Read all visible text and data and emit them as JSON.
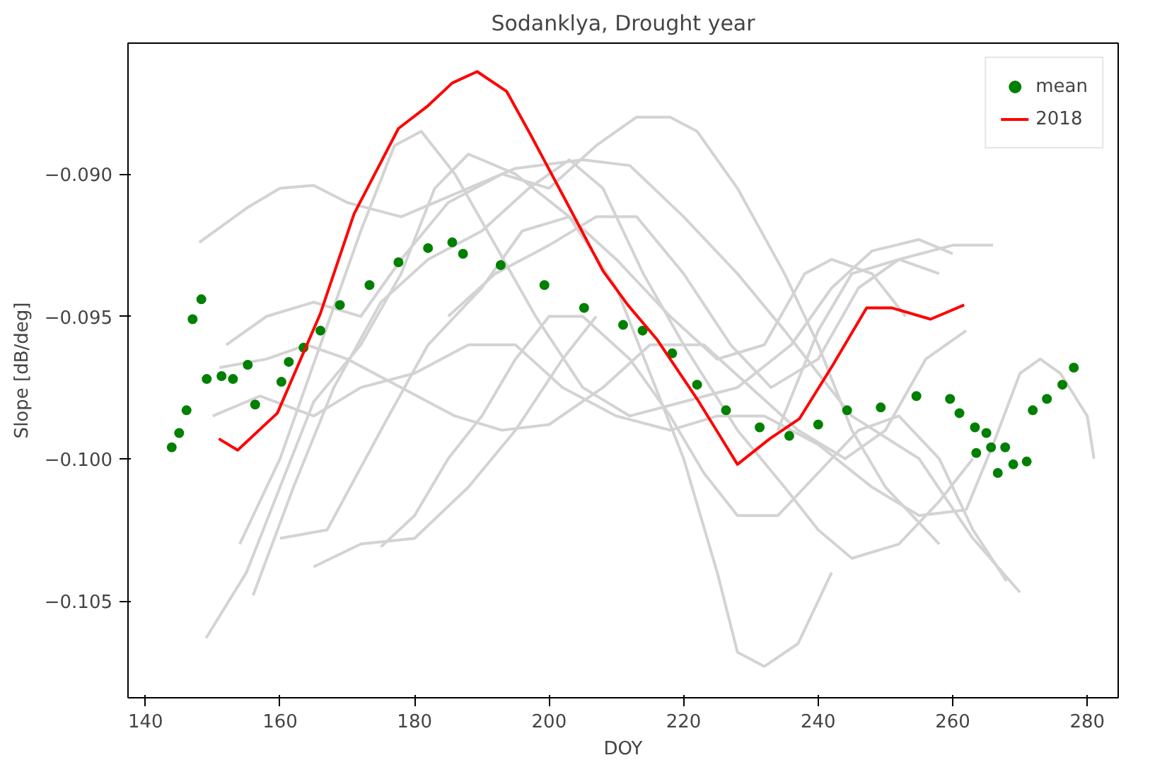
{
  "chart_data": {
    "type": "line",
    "title": "Sodanklya, Drought year",
    "xlabel": "DOY",
    "ylabel": "Slope [dB/deg]",
    "xlim": [
      137.4,
      284.6
    ],
    "ylim": [
      -0.1084,
      -0.0854
    ],
    "xticks": [
      140,
      160,
      180,
      200,
      220,
      240,
      260,
      280
    ],
    "yticks": [
      {
        "value": -0.105,
        "label": "−0.105"
      },
      {
        "value": -0.1,
        "label": "−0.100"
      },
      {
        "value": -0.095,
        "label": "−0.095"
      },
      {
        "value": -0.09,
        "label": "−0.090"
      }
    ],
    "grid": false,
    "legend": "top right",
    "line_style": "solid",
    "series": [
      {
        "color": "#d3d3d3",
        "x": [
          148,
          155,
          160,
          165,
          170,
          178,
          185,
          195,
          205,
          212,
          220,
          228,
          235,
          245,
          255,
          263,
          270
        ],
        "values": [
          -0.0924,
          -0.0912,
          -0.0905,
          -0.0904,
          -0.091,
          -0.0915,
          -0.0908,
          -0.0898,
          -0.0895,
          -0.0897,
          -0.0915,
          -0.0935,
          -0.0955,
          -0.0985,
          -0.1,
          -0.1028,
          -0.1047
        ]
      },
      {
        "color": "#d3d3d3",
        "x": [
          149,
          155,
          160,
          165,
          172,
          178,
          183,
          188,
          195,
          203,
          210,
          215,
          220,
          225,
          228,
          232,
          237,
          242
        ],
        "values": [
          -0.1063,
          -0.104,
          -0.101,
          -0.098,
          -0.096,
          -0.0935,
          -0.0905,
          -0.0893,
          -0.09,
          -0.0915,
          -0.094,
          -0.097,
          -0.1,
          -0.104,
          -0.1068,
          -0.1073,
          -0.1065,
          -0.104
        ]
      },
      {
        "color": "#d3d3d3",
        "x": [
          152,
          158,
          165,
          172,
          178,
          185,
          193,
          200,
          207,
          213,
          218,
          222,
          228,
          235,
          240,
          245,
          250,
          258
        ],
        "values": [
          -0.096,
          -0.095,
          -0.0945,
          -0.095,
          -0.093,
          -0.091,
          -0.09,
          -0.0905,
          -0.089,
          -0.088,
          -0.088,
          -0.0885,
          -0.0905,
          -0.0935,
          -0.096,
          -0.099,
          -0.101,
          -0.103
        ]
      },
      {
        "color": "#d3d3d3",
        "x": [
          154,
          160,
          166,
          172,
          177,
          181,
          186,
          192,
          198,
          205,
          212,
          220,
          228,
          236,
          242,
          248,
          255,
          260
        ],
        "values": [
          -0.103,
          -0.1,
          -0.096,
          -0.092,
          -0.089,
          -0.0885,
          -0.09,
          -0.0925,
          -0.095,
          -0.0975,
          -0.0985,
          -0.098,
          -0.0975,
          -0.096,
          -0.094,
          -0.0927,
          -0.0923,
          -0.0928
        ]
      },
      {
        "color": "#d3d3d3",
        "x": [
          156,
          162,
          168,
          175,
          182,
          190,
          197,
          203,
          208,
          214,
          220,
          228,
          235,
          240,
          245,
          252,
          258,
          263
        ],
        "values": [
          -0.1048,
          -0.101,
          -0.0975,
          -0.0945,
          -0.093,
          -0.092,
          -0.0905,
          -0.0895,
          -0.0905,
          -0.0935,
          -0.096,
          -0.099,
          -0.101,
          -0.1025,
          -0.1035,
          -0.103,
          -0.1015,
          -0.1
        ]
      },
      {
        "color": "#d3d3d3",
        "x": [
          160,
          167,
          175,
          182,
          190,
          196,
          203,
          210,
          218,
          225,
          232,
          238,
          242,
          248,
          253
        ],
        "values": [
          -0.1028,
          -0.1025,
          -0.099,
          -0.096,
          -0.094,
          -0.092,
          -0.0915,
          -0.093,
          -0.095,
          -0.0965,
          -0.096,
          -0.0935,
          -0.093,
          -0.0935,
          -0.095
        ]
      },
      {
        "color": "#d3d3d3",
        "x": [
          150,
          157,
          165,
          172,
          180,
          188,
          195,
          202,
          210,
          218,
          225,
          232,
          240,
          248,
          255,
          262
        ],
        "values": [
          -0.0985,
          -0.0978,
          -0.0985,
          -0.0975,
          -0.097,
          -0.096,
          -0.096,
          -0.0975,
          -0.0985,
          -0.099,
          -0.0985,
          -0.0985,
          -0.0995,
          -0.101,
          -0.102,
          -0.1018
        ]
      },
      {
        "color": "#d3d3d3",
        "x": [
          151,
          158,
          164,
          170,
          178,
          186,
          193,
          200,
          208,
          215,
          223,
          230,
          237,
          244,
          250,
          256,
          262
        ],
        "values": [
          -0.0968,
          -0.0965,
          -0.096,
          -0.0965,
          -0.0975,
          -0.0985,
          -0.099,
          -0.0988,
          -0.0975,
          -0.096,
          -0.096,
          -0.0975,
          -0.099,
          -0.1,
          -0.099,
          -0.0965,
          -0.0955
        ]
      },
      {
        "color": "#d3d3d3",
        "x": [
          175,
          180,
          185,
          190,
          195,
          200,
          205,
          212,
          218,
          223,
          228,
          234,
          240,
          246,
          252,
          258,
          263,
          268
        ],
        "values": [
          -0.1031,
          -0.102,
          -0.1,
          -0.0985,
          -0.0965,
          -0.095,
          -0.095,
          -0.0965,
          -0.0985,
          -0.1005,
          -0.102,
          -0.102,
          -0.1005,
          -0.099,
          -0.0985,
          -0.1,
          -0.1025,
          -0.1043
        ]
      },
      {
        "color": "#d3d3d3",
        "x": [
          185,
          192,
          200,
          207,
          213,
          220,
          227,
          233,
          240,
          246,
          252,
          258
        ],
        "values": [
          -0.095,
          -0.0935,
          -0.0925,
          -0.0915,
          -0.0915,
          -0.0935,
          -0.096,
          -0.0975,
          -0.0965,
          -0.094,
          -0.093,
          -0.0935
        ]
      },
      {
        "color": "#d3d3d3",
        "x": [
          234,
          240,
          245,
          252,
          260,
          266
        ],
        "values": [
          -0.099,
          -0.0955,
          -0.0935,
          -0.093,
          -0.0925,
          -0.0925
        ]
      },
      {
        "color": "#d3d3d3",
        "x": [
          262,
          266,
          270,
          273,
          276,
          280,
          281
        ],
        "values": [
          -0.1018,
          -0.0995,
          -0.097,
          -0.0965,
          -0.097,
          -0.0985,
          -0.1
        ]
      },
      {
        "color": "#d3d3d3",
        "x": [
          165,
          172,
          180,
          188,
          195,
          202,
          207
        ],
        "values": [
          -0.1038,
          -0.103,
          -0.1028,
          -0.101,
          -0.099,
          -0.0965,
          -0.095
        ]
      },
      {
        "name": "mean",
        "type": "scatter",
        "marker": "circle",
        "color": "#008000",
        "x": [
          143.9,
          145,
          146.1,
          147,
          148.3,
          149.1,
          151.3,
          153,
          155.2,
          156.3,
          160.2,
          161.3,
          163.5,
          166,
          168.9,
          173.3,
          177.6,
          182,
          185.6,
          187.2,
          192.8,
          199.3,
          205.2,
          211,
          213.9,
          218.3,
          222,
          226.3,
          231.3,
          235.7,
          240,
          244.3,
          249.3,
          254.6,
          259.6,
          261,
          263.3,
          265,
          263.5,
          265.7,
          267.8,
          266.7,
          269,
          271,
          271.9,
          274,
          276.3,
          278
        ],
        "values": [
          -0.0996,
          -0.0991,
          -0.0983,
          -0.0951,
          -0.0944,
          -0.0972,
          -0.0971,
          -0.0972,
          -0.0967,
          -0.0981,
          -0.0973,
          -0.0966,
          -0.0961,
          -0.0955,
          -0.0946,
          -0.0939,
          -0.0931,
          -0.0926,
          -0.0924,
          -0.0928,
          -0.0932,
          -0.0939,
          -0.0947,
          -0.0953,
          -0.0955,
          -0.0963,
          -0.0974,
          -0.0983,
          -0.0989,
          -0.0992,
          -0.0988,
          -0.0983,
          -0.0982,
          -0.0978,
          -0.0979,
          -0.0984,
          -0.0989,
          -0.0991,
          -0.0998,
          -0.0996,
          -0.0996,
          -0.1005,
          -0.1002,
          -0.1001,
          -0.0983,
          -0.0979,
          -0.0974,
          -0.0968
        ]
      },
      {
        "name": "2018",
        "color": "#ff0000",
        "x": [
          150.9,
          153.7,
          159.6,
          166,
          171,
          177.6,
          182,
          185.6,
          189.3,
          193.7,
          197.2,
          202.4,
          208,
          211.7,
          216,
          222,
          228,
          232.8,
          237.2,
          242.2,
          247.2,
          250.9,
          256.7,
          261.7
        ],
        "values": [
          -0.0993,
          -0.0997,
          -0.0984,
          -0.0949,
          -0.0914,
          -0.0884,
          -0.0876,
          -0.0868,
          -0.0864,
          -0.0871,
          -0.0886,
          -0.0909,
          -0.0934,
          -0.0946,
          -0.0958,
          -0.0979,
          -0.1002,
          -0.0993,
          -0.0986,
          -0.0967,
          -0.0947,
          -0.0947,
          -0.0951,
          -0.0946
        ]
      }
    ]
  }
}
